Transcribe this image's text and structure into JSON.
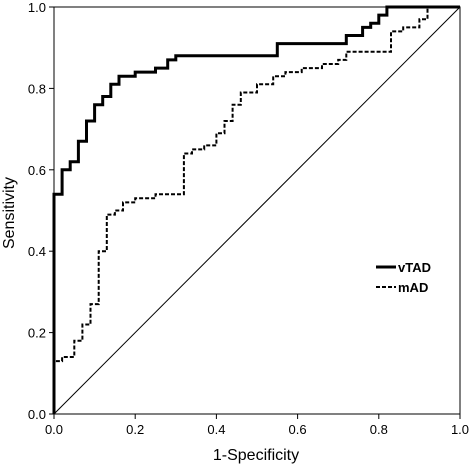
{
  "chart_data": {
    "type": "line",
    "title": "",
    "xlabel": "1-Specificity",
    "ylabel": "Sensitivity",
    "xlim": [
      0,
      1
    ],
    "ylim": [
      0,
      1
    ],
    "xticks": [
      "0.0",
      "0.2",
      "0.4",
      "0.6",
      "0.8",
      "1.0"
    ],
    "yticks": [
      "0.0",
      "0.2",
      "0.4",
      "0.6",
      "0.8",
      "1.0"
    ],
    "grid": false,
    "legend_position": "right",
    "series": [
      {
        "name": "vTAD",
        "style": "solid",
        "color": "#000000",
        "x": [
          0,
          0,
          0.02,
          0.02,
          0.04,
          0.04,
          0.06,
          0.06,
          0.08,
          0.08,
          0.1,
          0.1,
          0.12,
          0.12,
          0.14,
          0.14,
          0.16,
          0.16,
          0.2,
          0.2,
          0.25,
          0.25,
          0.28,
          0.28,
          0.3,
          0.3,
          0.55,
          0.55,
          0.72,
          0.72,
          0.76,
          0.76,
          0.78,
          0.78,
          0.8,
          0.8,
          0.82,
          0.82,
          1.0
        ],
        "y": [
          0,
          0.54,
          0.54,
          0.6,
          0.6,
          0.62,
          0.62,
          0.67,
          0.67,
          0.72,
          0.72,
          0.76,
          0.76,
          0.78,
          0.78,
          0.81,
          0.81,
          0.83,
          0.83,
          0.84,
          0.84,
          0.85,
          0.85,
          0.87,
          0.87,
          0.88,
          0.88,
          0.91,
          0.91,
          0.93,
          0.93,
          0.95,
          0.95,
          0.96,
          0.96,
          0.98,
          0.98,
          1.0,
          1.0
        ]
      },
      {
        "name": "mAD",
        "style": "dashed",
        "color": "#000000",
        "x": [
          0,
          0,
          0.02,
          0.02,
          0.05,
          0.05,
          0.07,
          0.07,
          0.09,
          0.09,
          0.11,
          0.11,
          0.13,
          0.13,
          0.15,
          0.15,
          0.17,
          0.17,
          0.2,
          0.2,
          0.25,
          0.25,
          0.32,
          0.32,
          0.34,
          0.34,
          0.37,
          0.37,
          0.4,
          0.4,
          0.42,
          0.42,
          0.44,
          0.44,
          0.46,
          0.46,
          0.5,
          0.5,
          0.54,
          0.54,
          0.57,
          0.57,
          0.61,
          0.61,
          0.66,
          0.66,
          0.7,
          0.7,
          0.72,
          0.72,
          0.83,
          0.83,
          0.86,
          0.86,
          0.9,
          0.9,
          0.92,
          0.92
        ],
        "y": [
          0.12,
          0.13,
          0.13,
          0.14,
          0.14,
          0.18,
          0.18,
          0.22,
          0.22,
          0.27,
          0.27,
          0.4,
          0.4,
          0.49,
          0.49,
          0.5,
          0.5,
          0.52,
          0.52,
          0.53,
          0.53,
          0.54,
          0.54,
          0.64,
          0.64,
          0.65,
          0.65,
          0.66,
          0.66,
          0.69,
          0.69,
          0.72,
          0.72,
          0.76,
          0.76,
          0.79,
          0.79,
          0.81,
          0.81,
          0.83,
          0.83,
          0.84,
          0.84,
          0.85,
          0.85,
          0.86,
          0.86,
          0.87,
          0.87,
          0.89,
          0.89,
          0.94,
          0.94,
          0.95,
          0.95,
          0.97,
          0.97,
          1.0
        ]
      },
      {
        "name": "",
        "style": "reference",
        "color": "#000000",
        "x": [
          0,
          1
        ],
        "y": [
          0,
          1
        ]
      }
    ]
  }
}
